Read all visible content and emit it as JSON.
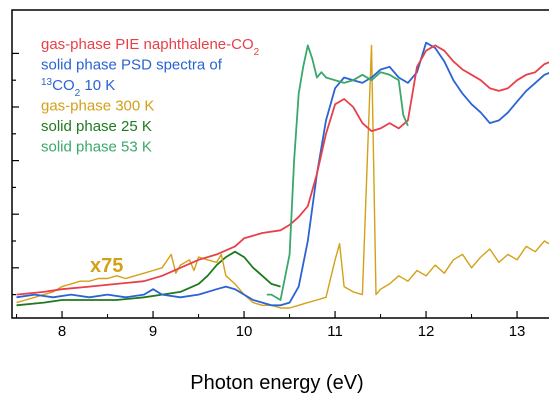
{
  "chart_data": {
    "type": "line",
    "xlabel": "Photon energy (eV)",
    "ylabel": "",
    "xlim": [
      7.45,
      13.45
    ],
    "ylim": [
      0,
      1
    ],
    "x_ticks": [
      "8",
      "9",
      "10",
      "11",
      "12",
      "13"
    ],
    "grid": false,
    "legend": "top-left",
    "annotation": {
      "text": "x75",
      "x": 8.3,
      "y": 0.2,
      "color": "#d4a017"
    },
    "legend_items": [
      {
        "series": 0,
        "prefix": "gas-phase PIE naphthalene-CO",
        "sub": "2",
        "suffix": ""
      },
      {
        "series": 1,
        "prefix": "solid phase PSD spectra of",
        "sub": "",
        "suffix": ""
      },
      {
        "series": 1,
        "sup": "13",
        "prefix": "CO",
        "sub": "2",
        "suffix": " 10 K"
      },
      {
        "series": 2,
        "prefix": "gas-phase 300 K",
        "sub": "",
        "suffix": ""
      },
      {
        "series": 3,
        "prefix": "solid phase 25 K",
        "sub": "",
        "suffix": ""
      },
      {
        "series": 4,
        "prefix": "solid phase 53 K",
        "sub": "",
        "suffix": ""
      }
    ],
    "series": [
      {
        "name": "gas-phase PIE naphthalene-CO2",
        "color": "#e8404a",
        "x": [
          7.5,
          7.8,
          8.0,
          8.3,
          8.6,
          8.9,
          9.1,
          9.3,
          9.5,
          9.7,
          9.9,
          10.0,
          10.2,
          10.4,
          10.5,
          10.6,
          10.7,
          10.8,
          10.9,
          11.0,
          11.1,
          11.2,
          11.3,
          11.4,
          11.5,
          11.6,
          11.7,
          11.8,
          11.9,
          12.0,
          12.1,
          12.2,
          12.3,
          12.4,
          12.5,
          12.6,
          12.7,
          12.8,
          12.9,
          13.0,
          13.1,
          13.2,
          13.3,
          13.45
        ],
        "y": [
          0.05,
          0.06,
          0.07,
          0.08,
          0.09,
          0.1,
          0.12,
          0.15,
          0.18,
          0.2,
          0.23,
          0.26,
          0.28,
          0.29,
          0.31,
          0.34,
          0.38,
          0.5,
          0.65,
          0.76,
          0.78,
          0.75,
          0.69,
          0.66,
          0.67,
          0.69,
          0.67,
          0.7,
          0.9,
          0.96,
          0.98,
          0.96,
          0.92,
          0.89,
          0.87,
          0.85,
          0.82,
          0.81,
          0.82,
          0.85,
          0.87,
          0.88,
          0.91,
          0.93
        ]
      },
      {
        "name": "solid phase PSD spectra of 13CO2 10 K",
        "color": "#2a63d4",
        "x": [
          7.5,
          7.7,
          7.9,
          8.1,
          8.3,
          8.5,
          8.7,
          8.9,
          9.0,
          9.1,
          9.3,
          9.5,
          9.7,
          9.8,
          9.9,
          10.0,
          10.1,
          10.2,
          10.3,
          10.4,
          10.5,
          10.6,
          10.7,
          10.8,
          10.9,
          11.0,
          11.1,
          11.2,
          11.3,
          11.4,
          11.5,
          11.6,
          11.7,
          11.8,
          11.9,
          12.0,
          12.1,
          12.2,
          12.3,
          12.4,
          12.5,
          12.6,
          12.7,
          12.8,
          12.9,
          13.0,
          13.1,
          13.2,
          13.3,
          13.45
        ],
        "y": [
          0.04,
          0.05,
          0.04,
          0.05,
          0.04,
          0.05,
          0.04,
          0.05,
          0.07,
          0.05,
          0.04,
          0.05,
          0.07,
          0.08,
          0.07,
          0.05,
          0.03,
          0.02,
          0.01,
          0.01,
          0.02,
          0.08,
          0.25,
          0.5,
          0.7,
          0.82,
          0.86,
          0.85,
          0.84,
          0.86,
          0.89,
          0.9,
          0.86,
          0.84,
          0.88,
          0.99,
          0.97,
          0.92,
          0.85,
          0.8,
          0.76,
          0.73,
          0.69,
          0.7,
          0.73,
          0.77,
          0.81,
          0.84,
          0.87,
          0.89
        ]
      },
      {
        "name": "gas-phase 300 K",
        "color": "#d4a017",
        "x": [
          7.5,
          7.6,
          7.7,
          7.8,
          7.9,
          8.0,
          8.1,
          8.2,
          8.3,
          8.4,
          8.5,
          8.6,
          8.7,
          8.8,
          8.9,
          9.0,
          9.1,
          9.2,
          9.25,
          9.3,
          9.4,
          9.45,
          9.5,
          9.6,
          9.7,
          9.75,
          9.8,
          9.9,
          10.0,
          10.1,
          10.2,
          10.3,
          10.4,
          10.5,
          10.6,
          10.7,
          10.8,
          10.9,
          11.0,
          11.05,
          11.1,
          11.2,
          11.3,
          11.4,
          11.45,
          11.5,
          11.6,
          11.7,
          11.8,
          11.9,
          12.0,
          12.1,
          12.2,
          12.3,
          12.4,
          12.5,
          12.6,
          12.7,
          12.8,
          12.9,
          13.0,
          13.1,
          13.2,
          13.3,
          13.45
        ],
        "y": [
          0.02,
          0.03,
          0.04,
          0.05,
          0.06,
          0.08,
          0.09,
          0.1,
          0.1,
          0.11,
          0.11,
          0.12,
          0.11,
          0.12,
          0.13,
          0.14,
          0.15,
          0.2,
          0.13,
          0.16,
          0.18,
          0.14,
          0.19,
          0.18,
          0.17,
          0.2,
          0.12,
          0.09,
          0.05,
          0.02,
          0.01,
          0.01,
          0.0,
          0.0,
          0.01,
          0.02,
          0.03,
          0.04,
          0.18,
          0.24,
          0.08,
          0.06,
          0.05,
          0.98,
          0.05,
          0.07,
          0.09,
          0.12,
          0.1,
          0.14,
          0.12,
          0.16,
          0.13,
          0.18,
          0.2,
          0.15,
          0.19,
          0.22,
          0.17,
          0.2,
          0.18,
          0.23,
          0.21,
          0.25,
          0.22
        ]
      },
      {
        "name": "solid phase 25 K",
        "color": "#1f7a1f",
        "x": [
          7.5,
          7.8,
          8.0,
          8.3,
          8.6,
          8.9,
          9.1,
          9.3,
          9.5,
          9.6,
          9.7,
          9.8,
          9.9,
          10.0,
          10.1,
          10.2,
          10.3,
          10.4
        ],
        "y": [
          0.01,
          0.02,
          0.03,
          0.03,
          0.03,
          0.04,
          0.05,
          0.06,
          0.09,
          0.12,
          0.16,
          0.19,
          0.21,
          0.19,
          0.15,
          0.12,
          0.09,
          0.08
        ]
      },
      {
        "name": "solid phase 53 K",
        "color": "#3aa86a",
        "x": [
          10.25,
          10.3,
          10.4,
          10.5,
          10.55,
          10.6,
          10.65,
          10.7,
          10.75,
          10.8,
          10.85,
          10.9,
          11.0,
          11.1,
          11.2,
          11.3,
          11.4,
          11.5,
          11.6,
          11.7,
          11.75,
          11.8
        ],
        "y": [
          0.05,
          0.05,
          0.03,
          0.2,
          0.55,
          0.8,
          0.9,
          0.98,
          0.93,
          0.86,
          0.88,
          0.86,
          0.85,
          0.84,
          0.85,
          0.87,
          0.85,
          0.88,
          0.87,
          0.85,
          0.72,
          0.68
        ]
      }
    ]
  }
}
